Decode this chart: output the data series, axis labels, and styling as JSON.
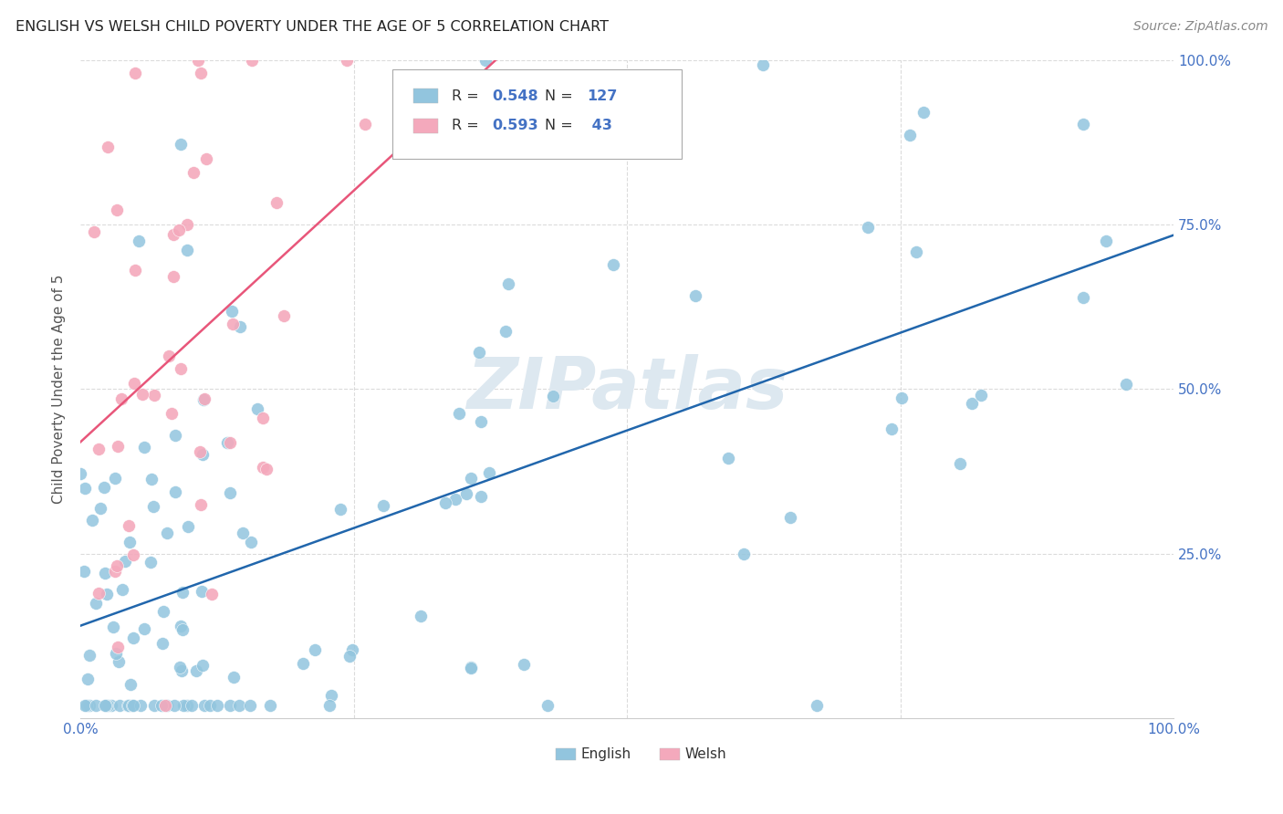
{
  "title": "ENGLISH VS WELSH CHILD POVERTY UNDER THE AGE OF 5 CORRELATION CHART",
  "source": "Source: ZipAtlas.com",
  "ylabel": "Child Poverty Under the Age of 5",
  "english_R": 0.548,
  "english_N": 127,
  "welsh_R": 0.593,
  "welsh_N": 43,
  "english_color": "#92c5de",
  "welsh_color": "#f4a9bc",
  "english_line_color": "#2166ac",
  "welsh_line_color": "#e8567a",
  "background_color": "#ffffff",
  "grid_color": "#cccccc",
  "title_color": "#222222",
  "source_color": "#888888",
  "axis_label_color": "#4472c4",
  "ylabel_color": "#555555",
  "watermark_color": "#dde8f0",
  "legend_value_color": "#4472c4",
  "legend_label_color": "#333333",
  "ytick_positions": [
    0.25,
    0.5,
    0.75,
    1.0
  ],
  "ytick_labels": [
    "25.0%",
    "50.0%",
    "75.0%",
    "100.0%"
  ],
  "xtick_positions": [
    0.0,
    1.0
  ],
  "xtick_labels": [
    "0.0%",
    "100.0%"
  ]
}
